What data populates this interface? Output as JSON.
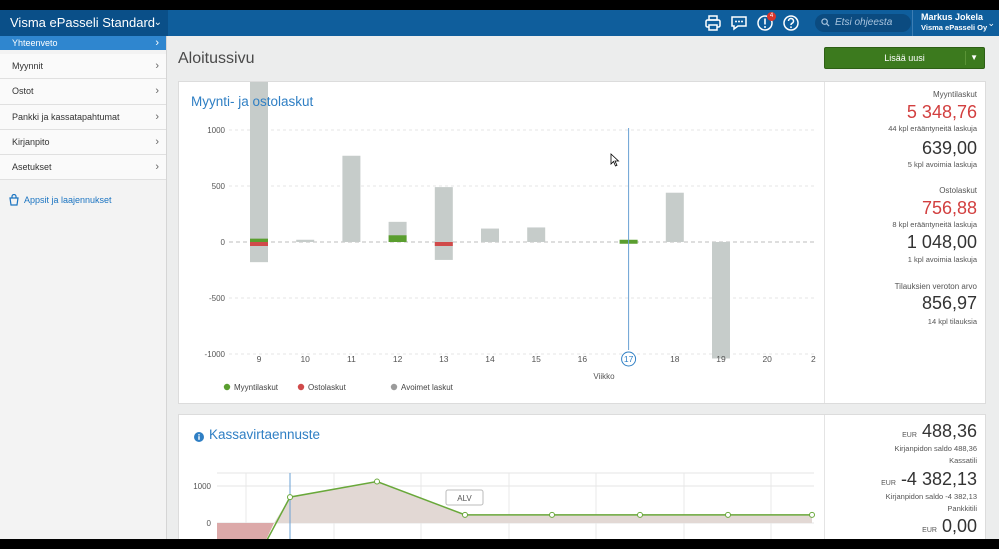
{
  "app": {
    "title": "Visma ePasseli Standard"
  },
  "topbar": {
    "notifications_count": "4",
    "search_placeholder": "Etsi ohjeesta",
    "user_name": "Markus Jokela",
    "company": "Visma ePasseli Oy"
  },
  "sidebar": {
    "items": [
      {
        "label": "Yhteenveto"
      },
      {
        "label": "Myynnit"
      },
      {
        "label": "Ostot"
      },
      {
        "label": "Pankki ja kassatapahtumat"
      },
      {
        "label": "Kirjanpito"
      },
      {
        "label": "Asetukset"
      }
    ],
    "apps_link": "Appsit ja laajennukset"
  },
  "main": {
    "title": "Aloitussivu",
    "add_button": "Lisää uusi"
  },
  "card_sales": {
    "title": "Myynti- ja ostolaskut",
    "summary": {
      "sales_label": "Myyntilaskut",
      "sales_overdue": "5 348,76",
      "sales_overdue_note": "44 kpl erääntyneitä laskuja",
      "sales_open": "639,00",
      "sales_open_note": "5 kpl avoimia laskuja",
      "purchase_label": "Ostolaskut",
      "purchase_overdue": "756,88",
      "purchase_overdue_note": "8 kpl erääntyneitä laskuja",
      "purchase_open": "1 048,00",
      "purchase_open_note": "1 kpl avoimia laskuja",
      "orders_label": "Tilauksien veroton arvo",
      "orders_value": "856,97",
      "orders_note": "14 kpl tilauksia"
    }
  },
  "card_cash": {
    "title": "Kassavirtaennuste",
    "summary": {
      "currency": "EUR",
      "balance1": "488,36",
      "balance1_note": "Kirjanpidon saldo 488,36",
      "account1": "Kassatili",
      "balance2": "-4 382,13",
      "balance2_note": "Kirjanpidon saldo -4 382,13",
      "account2": "Pankkitili",
      "balance3": "0,00"
    }
  },
  "colors": {
    "green": "#5a9e2f",
    "red": "#d04a4a",
    "gray": "#c6ccca",
    "blue": "#2f7fc4"
  },
  "chart_data": [
    {
      "type": "bar",
      "title": "Myynti- ja ostolaskut",
      "xlabel": "Viikko",
      "ylabel": "",
      "ylim": [
        -1800,
        1800
      ],
      "yticks": [
        1500,
        1000,
        500,
        0,
        -500,
        -1000,
        -1500
      ],
      "categories": [
        "9",
        "10",
        "11",
        "12",
        "13",
        "14",
        "15",
        "16",
        "17",
        "18",
        "19",
        "20",
        "2"
      ],
      "highlight_category": "17",
      "series": [
        {
          "name": "Myyntilaskut",
          "color": "#5a9e2f",
          "values": [
            30,
            0,
            0,
            60,
            0,
            0,
            0,
            0,
            20,
            0,
            0,
            0,
            0
          ]
        },
        {
          "name": "Ostolaskut",
          "color": "#d04a4a",
          "values": [
            -30,
            0,
            0,
            0,
            -30,
            0,
            0,
            0,
            0,
            0,
            0,
            0,
            0
          ]
        },
        {
          "name": "Avoimet laskut",
          "color": "#9b9b9b",
          "positive": [
            1530,
            20,
            770,
            180,
            490,
            120,
            130,
            0,
            0,
            440,
            0,
            0,
            0
          ],
          "negative": [
            -180,
            0,
            0,
            0,
            -160,
            0,
            0,
            0,
            0,
            0,
            -1040,
            0,
            0
          ]
        }
      ],
      "legend": "bottom-left"
    },
    {
      "type": "area",
      "title": "Kassavirtaennuste",
      "ylim": [
        -600,
        1400
      ],
      "yticks": [
        1000,
        0
      ],
      "x": [
        0,
        1,
        2,
        3,
        4,
        5,
        6,
        7
      ],
      "values": [
        -1200,
        700,
        1120,
        220,
        220,
        220,
        220,
        220
      ],
      "annotation": "ALV"
    }
  ]
}
